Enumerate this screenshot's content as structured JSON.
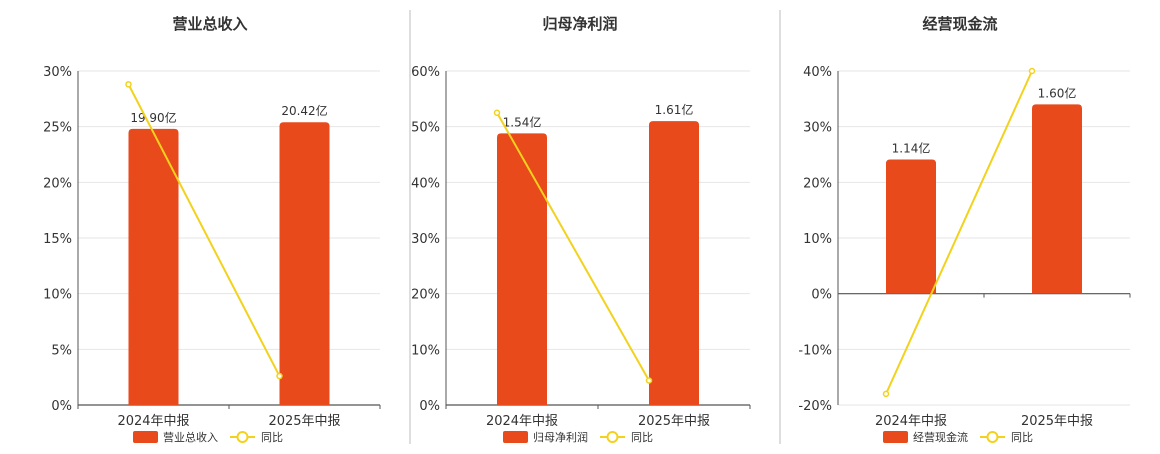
{
  "colors": {
    "bar": "#e84a1c",
    "line": "#f2d21c",
    "grid": "#e6e6e6",
    "axis": "#555555",
    "text": "#333333",
    "divider": "#bdbdbd"
  },
  "chart_data": [
    {
      "type": "bar",
      "title": "营业总收入",
      "categories": [
        "2024年中报",
        "2025年中报"
      ],
      "series": [
        {
          "name": "营业总收入",
          "type": "bar",
          "values": [
            24.8,
            25.4
          ],
          "labels": [
            "19.90亿",
            "20.42亿"
          ]
        },
        {
          "name": "同比",
          "type": "line",
          "values": [
            28.8,
            2.6
          ]
        }
      ],
      "ylim": [
        0,
        30
      ],
      "yticks": [
        0,
        5,
        10,
        15,
        20,
        25,
        30
      ],
      "ytick_labels": [
        "0%",
        "5%",
        "10%",
        "15%",
        "20%",
        "25%",
        "30%"
      ],
      "grid": true,
      "legend": "bottom"
    },
    {
      "type": "bar",
      "title": "归母净利润",
      "categories": [
        "2024年中报",
        "2025年中报"
      ],
      "series": [
        {
          "name": "归母净利润",
          "type": "bar",
          "values": [
            48.8,
            51.0
          ],
          "labels": [
            "1.54亿",
            "1.61亿"
          ]
        },
        {
          "name": "同比",
          "type": "line",
          "values": [
            52.5,
            4.4
          ]
        }
      ],
      "ylim": [
        0,
        60
      ],
      "yticks": [
        0,
        10,
        20,
        30,
        40,
        50,
        60
      ],
      "ytick_labels": [
        "0%",
        "10%",
        "20%",
        "30%",
        "40%",
        "50%",
        "60%"
      ],
      "grid": true,
      "legend": "bottom"
    },
    {
      "type": "bar",
      "title": "经营现金流",
      "categories": [
        "2024年中报",
        "2025年中报"
      ],
      "series": [
        {
          "name": "经营现金流",
          "type": "bar",
          "values": [
            24.1,
            34.0
          ],
          "labels": [
            "1.14亿",
            "1.60亿"
          ]
        },
        {
          "name": "同比",
          "type": "line",
          "values": [
            -18.0,
            40.0
          ]
        }
      ],
      "ylim": [
        -20,
        40
      ],
      "yticks": [
        -20,
        -10,
        0,
        10,
        20,
        30,
        40
      ],
      "ytick_labels": [
        "-20%",
        "-10%",
        "0%",
        "10%",
        "20%",
        "30%",
        "40%"
      ],
      "grid": true,
      "legend": "bottom"
    }
  ]
}
